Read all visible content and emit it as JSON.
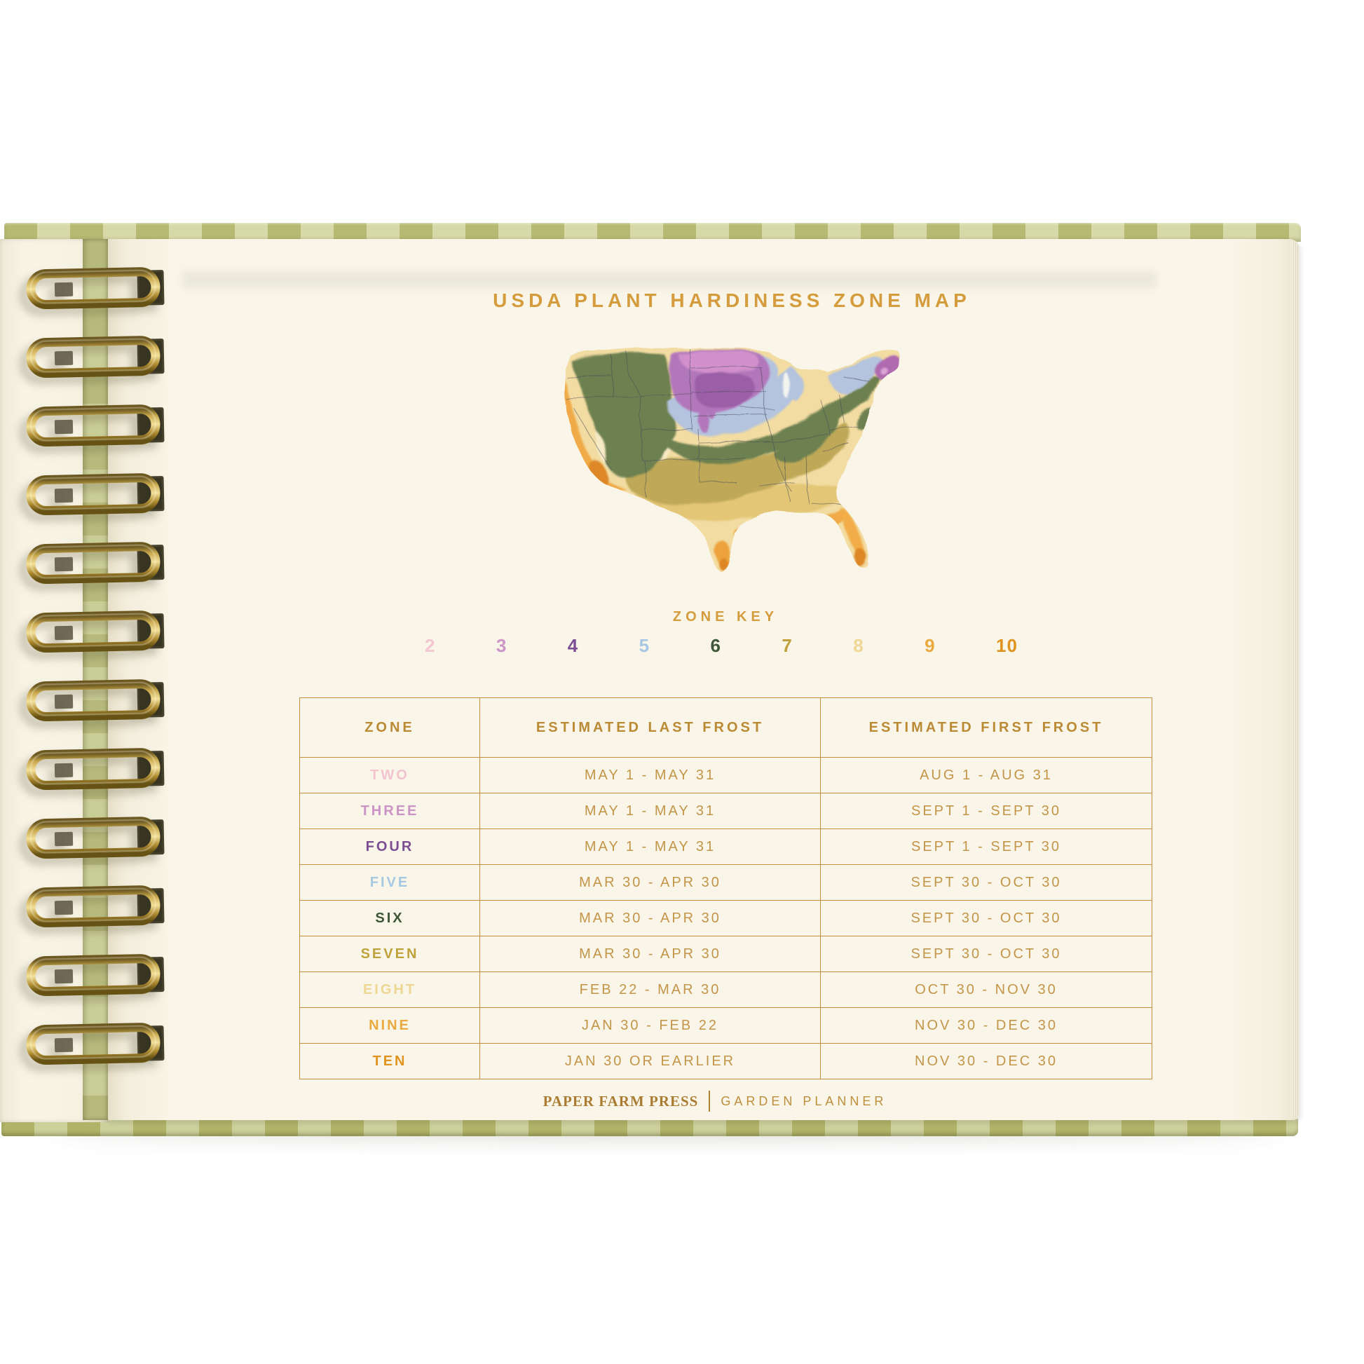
{
  "page": {
    "title": "USDA PLANT HARDINESS ZONE MAP",
    "zone_key_label": "ZONE KEY",
    "footer": {
      "brand": "PAPER FARM PRESS",
      "product": "GARDEN PLANNER"
    }
  },
  "zone_key": {
    "numbers": [
      {
        "label": "2",
        "color": "#f3c6d1"
      },
      {
        "label": "3",
        "color": "#cc95c7"
      },
      {
        "label": "4",
        "color": "#7b4e94"
      },
      {
        "label": "5",
        "color": "#a6c8e2"
      },
      {
        "label": "6",
        "color": "#40583a"
      },
      {
        "label": "7",
        "color": "#c0a23c"
      },
      {
        "label": "8",
        "color": "#eed792"
      },
      {
        "label": "9",
        "color": "#eaaa3f"
      },
      {
        "label": "10",
        "color": "#e0941f"
      }
    ]
  },
  "table": {
    "headers": [
      "ZONE",
      "ESTIMATED LAST FROST",
      "ESTIMATED FIRST FROST"
    ],
    "rows": [
      {
        "zone": "TWO",
        "color": "#f3c3cf",
        "last": "MAY 1 - MAY 31",
        "first": "AUG 1 - AUG 31"
      },
      {
        "zone": "THREE",
        "color": "#cb93c6",
        "last": "MAY 1 - MAY 31",
        "first": "SEPT 1 - SEPT 30"
      },
      {
        "zone": "FOUR",
        "color": "#7b4e94",
        "last": "MAY 1 - MAY 31",
        "first": "SEPT 1 - SEPT 30"
      },
      {
        "zone": "FIVE",
        "color": "#a6c8e2",
        "last": "MAR 30 - APR 30",
        "first": "SEPT 30 - OCT 30"
      },
      {
        "zone": "SIX",
        "color": "#3d5635",
        "last": "MAR 30 - APR 30",
        "first": "SEPT 30 - OCT 30"
      },
      {
        "zone": "SEVEN",
        "color": "#c0a23c",
        "last": "MAR 30 - APR 30",
        "first": "SEPT 30 - OCT 30"
      },
      {
        "zone": "EIGHT",
        "color": "#eed792",
        "last": "FEB 22 - MAR 30",
        "first": "OCT 30 - NOV 30"
      },
      {
        "zone": "NINE",
        "color": "#eaaa3f",
        "last": "JAN 30 - FEB 22",
        "first": "NOV 30 - DEC 30"
      },
      {
        "zone": "TEN",
        "color": "#e0941f",
        "last": "JAN 30 OR EARLIER",
        "first": "NOV 30 - DEC 30"
      }
    ]
  },
  "map": {
    "name": "usa-plant-hardiness-watercolor-map",
    "zone_colors": {
      "zone3_purple": "#b277bb",
      "zone4_dark_purple": "#9a5fa6",
      "zone3_pink": "#d795cf",
      "zone5_blue": "#b4c3de",
      "zone6_green": "#6d8050",
      "zone7_olive": "#bfa958",
      "zone8_pale_yellow": "#f2dca2",
      "zone9_orange": "#f0aa47",
      "zone10_dark_orange": "#dd8728"
    }
  },
  "theme": {
    "accent_gold": "#d49c3c",
    "table_line": "#c28e3e",
    "page_cream": "#f8f4e6",
    "cover_green": "#b6b972",
    "cover_green_light": "#d5d8a6",
    "binding_brass": "#caa94e"
  }
}
